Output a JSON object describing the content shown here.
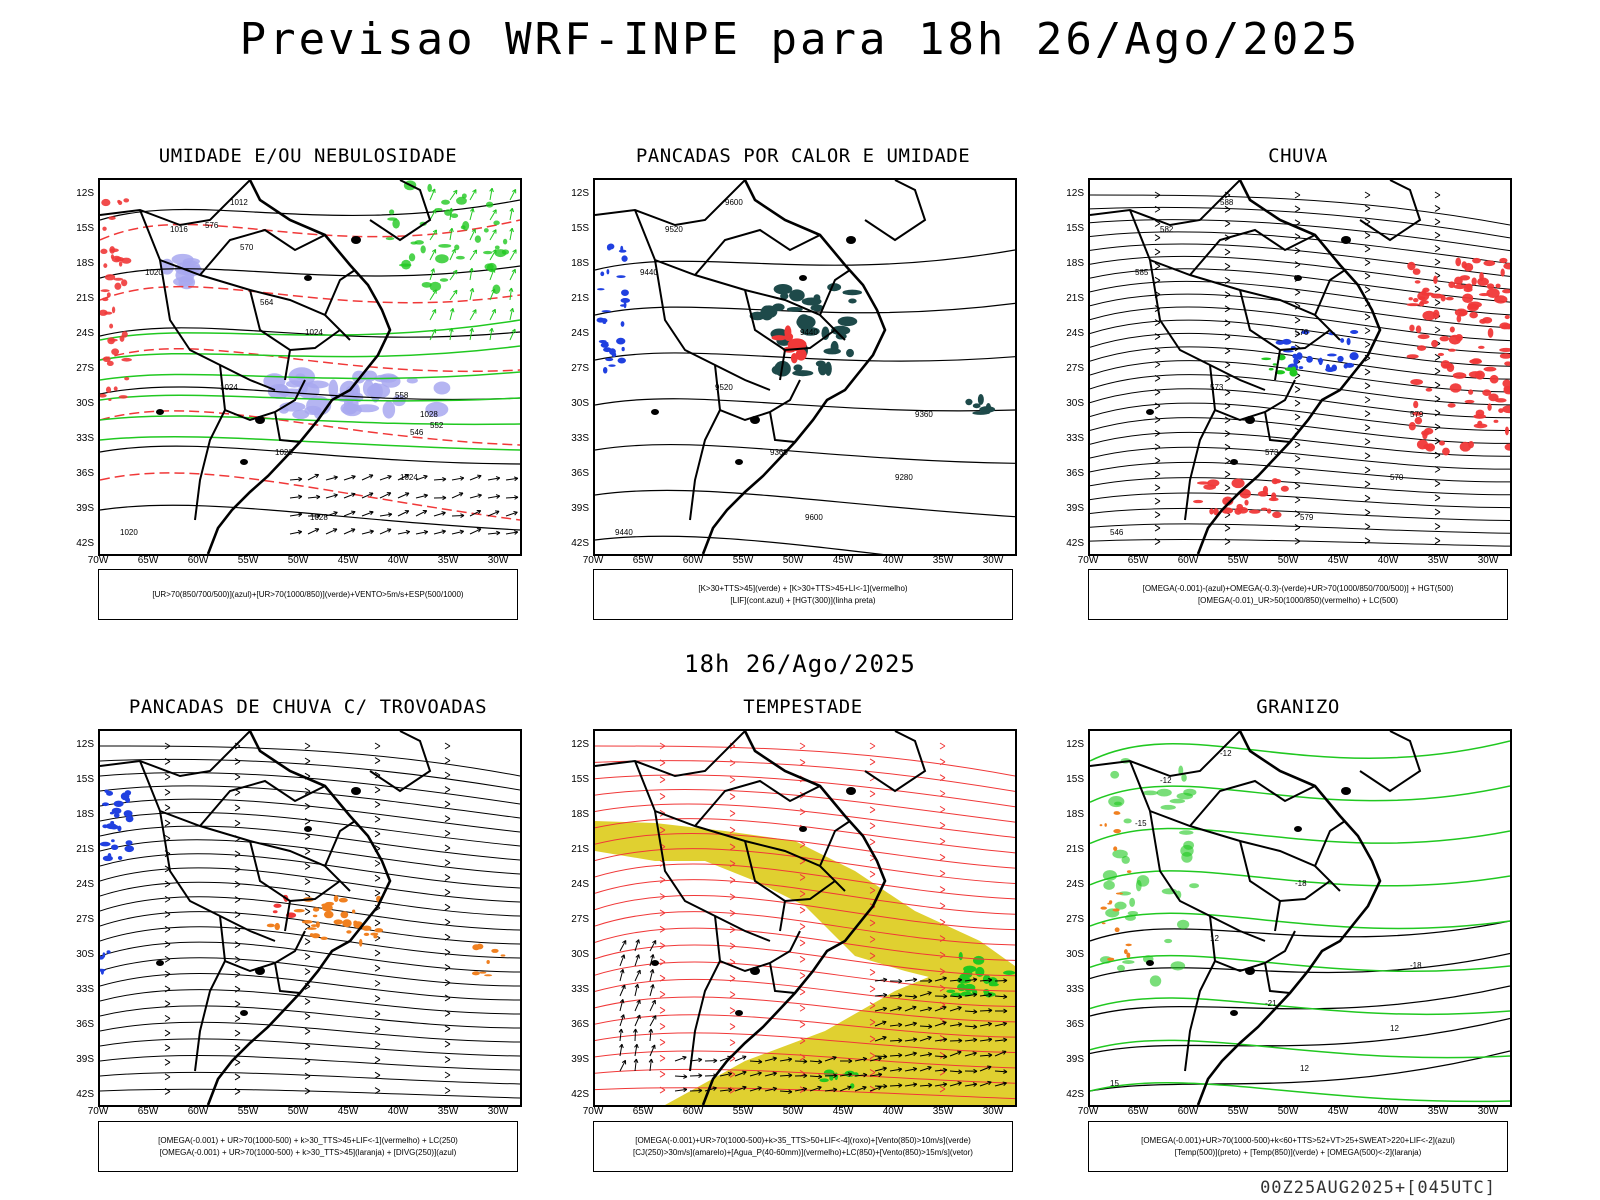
{
  "main_title": "Previsao WRF-INPE  para 18h 26/Ago/2025",
  "mid_title": "18h 26/Ago/2025",
  "footer": "00Z25AUG2025+[045UTC]",
  "lat_labels": [
    "12S",
    "15S",
    "18S",
    "21S",
    "24S",
    "27S",
    "30S",
    "33S",
    "36S",
    "39S",
    "42S"
  ],
  "lon_labels": [
    "70W",
    "65W",
    "60W",
    "55W",
    "50W",
    "45W",
    "40W",
    "35W",
    "30W"
  ],
  "colors": {
    "black": "#000000",
    "red": "#f03838",
    "green": "#20c820",
    "blue": "#2040e0",
    "lavender": "#a8a8f0",
    "darkteal": "#1e4a4a",
    "yellow": "#e0d030",
    "orange": "#f08020"
  },
  "panels": [
    {
      "title": "UMIDADE E/OU NEBULOSIDADE",
      "legend": [
        "[UR>70(850/700/500)](azul)+[UR>70(1000/850)](verde)+VENTO>5m/s+ESP(500/1000)"
      ],
      "labels": [
        "1012",
        "1016",
        "1020",
        "1024",
        "1028",
        "1020",
        "1024",
        "1028",
        "1024",
        "1020",
        "576",
        "570",
        "564",
        "558",
        "552",
        "546"
      ]
    },
    {
      "title": "PANCADAS POR CALOR E UMIDADE",
      "legend": [
        "[K>30+TTS>45](verde) + [K>30+TTS>45+LI<-1](vermelho)",
        "[LIF](cont.azul) + [HGT(300)](linha preta)"
      ],
      "labels": [
        "9600",
        "9520",
        "9440",
        "9440",
        "9360",
        "9360",
        "9280",
        "9600",
        "9520",
        "9440"
      ]
    },
    {
      "title": "CHUVA",
      "legend": [
        "[OMEGA(-0.001)-(azul)+OMEGA(-0.3)-(verde)+UR>70(1000/850/700/500)] + HGT(500)",
        "[OMEGA(-0.01)_UR>50(1000/850)(vermelho) + LC(500)"
      ],
      "labels": [
        "588",
        "582",
        "585",
        "576",
        "579",
        "573",
        "570",
        "579",
        "573",
        "546"
      ]
    },
    {
      "title": "PANCADAS DE CHUVA C/ TROVOADAS",
      "legend": [
        "[OMEGA(-0.001) + UR>70(1000-500) + k>30_TTS>45+LIF<-1](vermelho) + LC(250)",
        "[OMEGA(-0.001) + UR>70(1000-500) + k>30_TTS>45](laranja) + [DIVG(250)](azul)"
      ],
      "labels": []
    },
    {
      "title": "TEMPESTADE",
      "legend": [
        "[OMEGA(-0.001)+UR>70(1000-500)+k>35_TTS>50+LIF<-4](roxo)+[Vento(850)>10m/s](verde)",
        "[CJ(250)>30m/s](amarelo)+[Agua_P(40-60mm)](vermelho)+LC(850)+[Vento(850)>15m/s](vetor)"
      ],
      "labels": []
    },
    {
      "title": "GRANIZO",
      "legend": [
        "[OMEGA(-0.001)+UR>70(1000-500)+k<60+TTS>52+VT>25+SWEAT>220+LIF<-2](azul)",
        "[Temp(500)](preto) + [Temp(850)](verde) + [OMEGA(500)<-2](laranja)"
      ],
      "labels": [
        "-12",
        "-12",
        "-15",
        "-18",
        "-18",
        "-21",
        "12",
        "12",
        "12",
        "15"
      ]
    }
  ]
}
